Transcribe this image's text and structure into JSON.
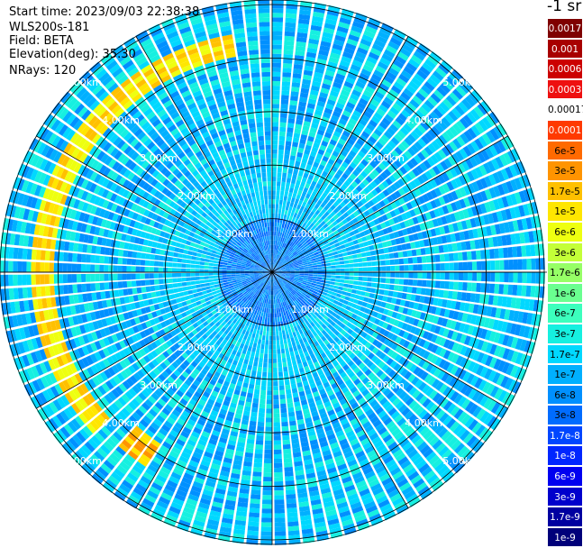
{
  "header": {
    "start_time": "Start time: 2023/09/03 22:38:38",
    "instrument": "WLS200s-181",
    "field": "Field: BETA",
    "elevation": "Elevation(deg): 35.30",
    "nrays": "NRays: 120"
  },
  "chart_data": {
    "type": "heatmap",
    "projection": "polar-ppi",
    "n_rays": 120,
    "range_rings_km": [
      1,
      2,
      3,
      4,
      5
    ],
    "range_labels": [
      "1.00km",
      "2.00km",
      "3.00km",
      "4.00km",
      "5.00km"
    ],
    "spokes_deg": [
      0,
      30,
      60,
      90,
      120,
      150,
      180,
      210,
      240,
      270,
      300,
      330
    ],
    "max_range_km": 5.1,
    "background_level": "1.7e-7",
    "features": [
      {
        "name": "aerosol-arc",
        "azimuth_deg": [
          228,
          352
        ],
        "range_km": [
          4.1,
          4.5
        ],
        "level": "1e-5"
      },
      {
        "name": "blob",
        "azimuth_deg": [
          212,
          222
        ],
        "range_km": [
          3.8,
          4.3
        ],
        "level": "1.7e-5"
      }
    ],
    "colorbar": {
      "unit": "-1 sr",
      "ticks": [
        "0.0017",
        "0.001",
        "0.0006",
        "0.0003",
        "0.00017",
        "0.0001",
        "6e-5",
        "3e-5",
        "1.7e-5",
        "1e-5",
        "6e-6",
        "3e-6",
        "1.7e-6",
        "1e-6",
        "6e-7",
        "3e-7",
        "1.7e-7",
        "1e-7",
        "6e-8",
        "3e-8",
        "1.7e-8",
        "1e-8",
        "6e-9",
        "3e-9",
        "1.7e-9",
        "1e-9"
      ],
      "colors": [
        "#7f0000",
        "#a80000",
        "#cc0000",
        "#ee1010",
        "#ffffff",
        "#ff3a00",
        "#ff6a00",
        "#ff9400",
        "#ffc000",
        "#ffe600",
        "#eeff10",
        "#c4ff38",
        "#96ff66",
        "#6aff90",
        "#3cffbd",
        "#16f0e0",
        "#00d8ff",
        "#00b0ff",
        "#0090ff",
        "#006cff",
        "#0046ff",
        "#0026ff",
        "#0000f0",
        "#0000cc",
        "#0000a0",
        "#00007a"
      ],
      "text_colors": [
        "#ffffff",
        "#ffffff",
        "#ffffff",
        "#ffffff",
        "#000000",
        "#ffffff",
        "#000000",
        "#000000",
        "#000000",
        "#000000",
        "#000000",
        "#000000",
        "#000000",
        "#000000",
        "#000000",
        "#000000",
        "#000000",
        "#000000",
        "#000000",
        "#000000",
        "#ffffff",
        "#ffffff",
        "#ffffff",
        "#ffffff",
        "#ffffff",
        "#ffffff"
      ]
    }
  }
}
